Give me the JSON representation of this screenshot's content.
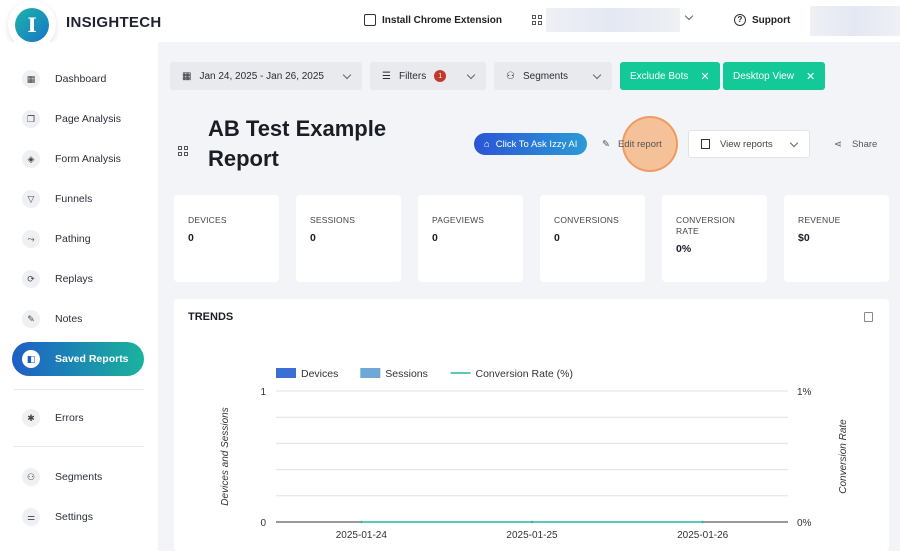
{
  "topbar": {
    "brand": "INSIGHTECH",
    "extension_label": "Install Chrome Extension",
    "support_label": "Support"
  },
  "sidebar": {
    "items": [
      {
        "label": "Dashboard",
        "icon": "dashboard-icon"
      },
      {
        "label": "Page Analysis",
        "icon": "page-analysis-icon"
      },
      {
        "label": "Form Analysis",
        "icon": "layers-icon"
      },
      {
        "label": "Funnels",
        "icon": "funnel-icon"
      },
      {
        "label": "Pathing",
        "icon": "path-icon"
      },
      {
        "label": "Replays",
        "icon": "replay-icon"
      },
      {
        "label": "Notes",
        "icon": "notes-icon"
      },
      {
        "label": "Saved Reports",
        "icon": "saved-reports-icon",
        "active": true
      },
      {
        "label": "Errors",
        "icon": "bug-icon"
      },
      {
        "label": "Segments",
        "icon": "segments-icon"
      },
      {
        "label": "Settings",
        "icon": "settings-sliders-icon"
      }
    ]
  },
  "filters": {
    "date_range": "Jan 24, 2025 - Jan 26, 2025",
    "filters_label": "Filters",
    "filters_count": "1",
    "segments_label": "Segments",
    "exclude_bots": "Exclude Bots",
    "desktop_view": "Desktop View"
  },
  "report": {
    "title": "AB Test Example Report",
    "ask_ai": "Click To Ask Izzy AI",
    "edit": "Edit report",
    "view_reports": "View reports",
    "share": "Share"
  },
  "metrics": [
    {
      "label": "DEVICES",
      "value": "0"
    },
    {
      "label": "SESSIONS",
      "value": "0"
    },
    {
      "label": "PAGEVIEWS",
      "value": "0"
    },
    {
      "label": "CONVERSIONS",
      "value": "0"
    },
    {
      "label": "CONVERSION RATE",
      "value": "0%"
    },
    {
      "label": "REVENUE",
      "value": "$0"
    }
  ],
  "trends": {
    "title": "TRENDS"
  },
  "colors": {
    "accent_blue": "#1e5fc6",
    "accent_green": "#12c997",
    "devices": "#3b6fd4",
    "sessions": "#6fa8d6",
    "conversion_rate": "#2bb3a0"
  },
  "chart_data": {
    "type": "bar",
    "categories": [
      "2025-01-24",
      "2025-01-25",
      "2025-01-26"
    ],
    "series": [
      {
        "name": "Devices",
        "type": "bar",
        "axis": "left",
        "values": [
          0,
          0,
          0
        ]
      },
      {
        "name": "Sessions",
        "type": "bar",
        "axis": "left",
        "values": [
          0,
          0,
          0
        ]
      },
      {
        "name": "Conversion Rate (%)",
        "type": "line",
        "axis": "right",
        "values": [
          0,
          0,
          0
        ]
      }
    ],
    "ylabel": "Devices and Sessions",
    "y2label": "Conversion Rate",
    "ylim": [
      0,
      1
    ],
    "y2lim": [
      0,
      1
    ],
    "yticks": [
      "0",
      "1"
    ],
    "y2ticks": [
      "0%",
      "1%"
    ],
    "grid": true,
    "legend": "top-left"
  }
}
